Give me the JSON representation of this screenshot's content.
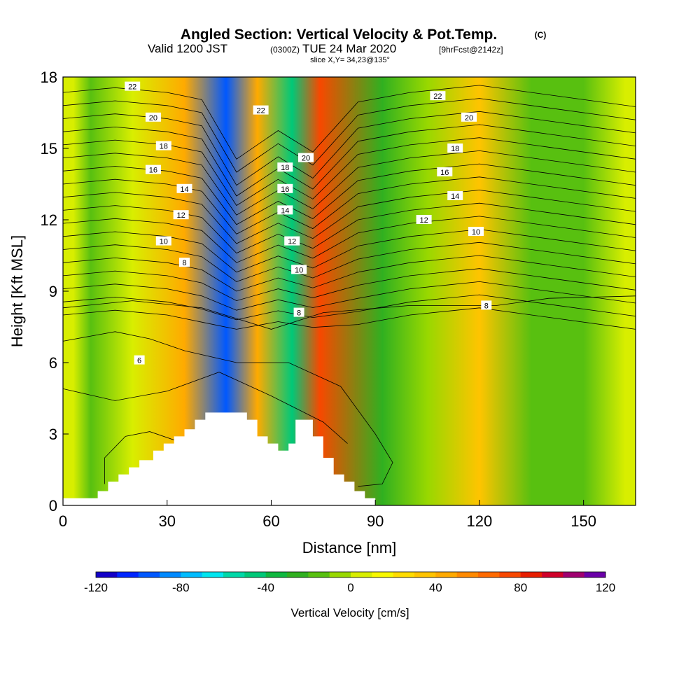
{
  "header": {
    "title": "Angled Section: Vertical Velocity & Pot.Temp.",
    "copyright": "(C)",
    "valid_prefix": "Valid 1200 JST",
    "valid_utc": "(0300Z)",
    "valid_date": "TUE 24 Mar 2020",
    "forecast": "[9hrFcst@2142z]",
    "slice": "slice X,Y= 34,23@135°"
  },
  "chart_data": {
    "type": "heatmap",
    "title": "Angled Section: Vertical Velocity & Pot.Temp.",
    "xlabel": "Distance [nm]",
    "ylabel": "Height [Kft MSL]",
    "xlim": [
      0,
      165
    ],
    "ylim": [
      0,
      18
    ],
    "x_ticks": [
      "0",
      "30",
      "60",
      "90",
      "120",
      "150"
    ],
    "x_tick_values": [
      0,
      30,
      60,
      90,
      120,
      150
    ],
    "y_ticks": [
      "0",
      "3",
      "6",
      "9",
      "12",
      "15",
      "18"
    ],
    "y_tick_values": [
      0,
      3,
      6,
      9,
      12,
      15,
      18
    ],
    "colorbar": {
      "label": "Vertical Velocity [cm/s]",
      "ticks": [
        "-120",
        "-80",
        "-40",
        "0",
        "40",
        "80",
        "120"
      ],
      "tick_values": [
        -120,
        -80,
        -40,
        0,
        40,
        80,
        120
      ],
      "range": [
        -120,
        120
      ],
      "step": 10
    },
    "velocity_bands": [
      {
        "x_center": 3,
        "value": 5
      },
      {
        "x_center": 8,
        "value": -15
      },
      {
        "x_center": 20,
        "value": 5
      },
      {
        "x_center": 35,
        "value": 40
      },
      {
        "x_center": 47,
        "value": -95
      },
      {
        "x_center": 56,
        "value": 40
      },
      {
        "x_center": 66,
        "value": -45
      },
      {
        "x_center": 74,
        "value": 75
      },
      {
        "x_center": 92,
        "value": -30
      },
      {
        "x_center": 105,
        "value": -10
      },
      {
        "x_center": 120,
        "value": 30
      },
      {
        "x_center": 135,
        "value": -15
      },
      {
        "x_center": 150,
        "value": -15
      },
      {
        "x_center": 162,
        "value": 5
      }
    ],
    "theta_contour_labels": [
      {
        "x": 20,
        "y": 17.6,
        "text": "22"
      },
      {
        "x": 26,
        "y": 16.3,
        "text": "20"
      },
      {
        "x": 29,
        "y": 15.1,
        "text": "18"
      },
      {
        "x": 26,
        "y": 14.1,
        "text": "16"
      },
      {
        "x": 35,
        "y": 13.3,
        "text": "14"
      },
      {
        "x": 34,
        "y": 12.2,
        "text": "12"
      },
      {
        "x": 29,
        "y": 11.1,
        "text": "10"
      },
      {
        "x": 35,
        "y": 10.2,
        "text": "8"
      },
      {
        "x": 22,
        "y": 6.1,
        "text": "6"
      },
      {
        "x": 57,
        "y": 16.6,
        "text": "22"
      },
      {
        "x": 70,
        "y": 14.6,
        "text": "20"
      },
      {
        "x": 64,
        "y": 14.2,
        "text": "18"
      },
      {
        "x": 64,
        "y": 13.3,
        "text": "16"
      },
      {
        "x": 64,
        "y": 12.4,
        "text": "14"
      },
      {
        "x": 66,
        "y": 11.1,
        "text": "12"
      },
      {
        "x": 68,
        "y": 9.9,
        "text": "10"
      },
      {
        "x": 68,
        "y": 8.1,
        "text": "8"
      },
      {
        "x": 108,
        "y": 17.2,
        "text": "22"
      },
      {
        "x": 117,
        "y": 16.3,
        "text": "20"
      },
      {
        "x": 113,
        "y": 15.0,
        "text": "18"
      },
      {
        "x": 110,
        "y": 14.0,
        "text": "16"
      },
      {
        "x": 113,
        "y": 13.0,
        "text": "14"
      },
      {
        "x": 104,
        "y": 12.0,
        "text": "12"
      },
      {
        "x": 119,
        "y": 11.5,
        "text": "10"
      },
      {
        "x": 122,
        "y": 8.4,
        "text": "8"
      }
    ],
    "terrain_kft": [
      [
        0,
        0.3
      ],
      [
        10,
        0.3
      ],
      [
        10,
        0.6
      ],
      [
        13,
        0.6
      ],
      [
        13,
        1.0
      ],
      [
        16,
        1.0
      ],
      [
        16,
        1.3
      ],
      [
        19,
        1.3
      ],
      [
        19,
        1.6
      ],
      [
        22,
        1.6
      ],
      [
        22,
        1.9
      ],
      [
        26,
        1.9
      ],
      [
        26,
        2.3
      ],
      [
        29,
        2.3
      ],
      [
        29,
        2.6
      ],
      [
        32,
        2.6
      ],
      [
        32,
        2.9
      ],
      [
        35,
        2.9
      ],
      [
        35,
        3.2
      ],
      [
        38,
        3.2
      ],
      [
        38,
        3.6
      ],
      [
        41,
        3.6
      ],
      [
        41,
        3.9
      ],
      [
        44,
        3.9
      ],
      [
        53,
        3.9
      ],
      [
        53,
        3.6
      ],
      [
        56,
        3.6
      ],
      [
        56,
        2.9
      ],
      [
        59,
        2.9
      ],
      [
        59,
        2.6
      ],
      [
        62,
        2.6
      ],
      [
        62,
        2.3
      ],
      [
        65,
        2.3
      ],
      [
        65,
        2.6
      ],
      [
        67,
        2.6
      ],
      [
        67,
        3.6
      ],
      [
        72,
        3.6
      ],
      [
        72,
        2.9
      ],
      [
        75,
        2.9
      ],
      [
        75,
        2.0
      ],
      [
        78,
        2.0
      ],
      [
        78,
        1.3
      ],
      [
        81,
        1.3
      ],
      [
        81,
        1.0
      ],
      [
        84,
        1.0
      ],
      [
        84,
        0.6
      ],
      [
        87,
        0.6
      ],
      [
        87,
        0.3
      ],
      [
        90,
        0.3
      ],
      [
        90,
        0
      ]
    ]
  }
}
